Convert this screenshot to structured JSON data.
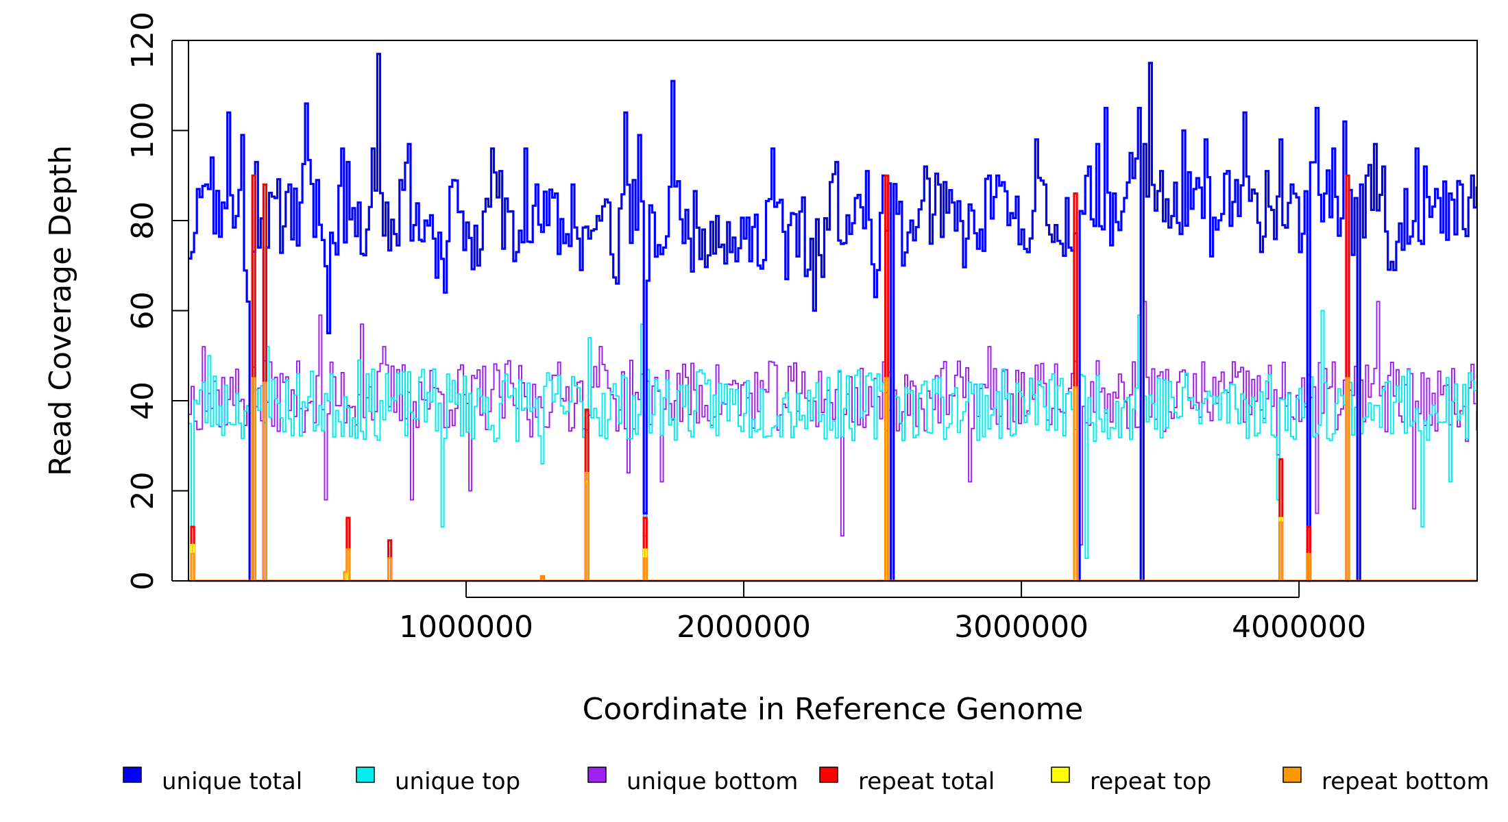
{
  "chart_data": {
    "type": "line",
    "title": "",
    "xlabel": "Coordinate in Reference Genome",
    "ylabel": "Read Coverage Depth",
    "xlim": [
      1,
      4641652
    ],
    "ylim": [
      0,
      120
    ],
    "x_ticks": [
      1000000,
      2000000,
      3000000,
      4000000
    ],
    "x_tick_labels": [
      "1000000",
      "2000000",
      "3000000",
      "4000000"
    ],
    "y_ticks": [
      0,
      20,
      40,
      60,
      80,
      100,
      120
    ],
    "y_tick_labels": [
      "0",
      "20",
      "40",
      "60",
      "80",
      "100",
      "120"
    ],
    "grid": false,
    "legend_position": "bottom",
    "bin_width": 10000,
    "series": [
      {
        "name": "unique total",
        "color": "#0000ff",
        "key_points": [
          [
            10000,
            73
          ],
          [
            30000,
            87
          ],
          [
            60000,
            88
          ],
          [
            80000,
            94
          ],
          [
            120000,
            84
          ],
          [
            140000,
            104
          ],
          [
            170000,
            81
          ],
          [
            190000,
            99
          ],
          [
            210000,
            62
          ],
          [
            240000,
            93
          ],
          [
            280000,
            74
          ],
          [
            310000,
            85
          ],
          [
            360000,
            88
          ],
          [
            400000,
            84
          ],
          [
            420000,
            106
          ],
          [
            460000,
            89
          ],
          [
            500000,
            55
          ],
          [
            520000,
            75
          ],
          [
            550000,
            96
          ],
          [
            570000,
            93
          ],
          [
            610000,
            84
          ],
          [
            640000,
            78
          ],
          [
            660000,
            96
          ],
          [
            680000,
            117
          ],
          [
            710000,
            84
          ],
          [
            740000,
            77
          ],
          [
            760000,
            89
          ],
          [
            790000,
            97
          ],
          [
            810000,
            79
          ],
          [
            850000,
            80
          ],
          [
            880000,
            76
          ],
          [
            920000,
            64
          ],
          [
            950000,
            89
          ],
          [
            980000,
            82
          ],
          [
            1040000,
            70
          ],
          [
            1060000,
            82
          ],
          [
            1090000,
            96
          ],
          [
            1120000,
            91
          ],
          [
            1150000,
            82
          ],
          [
            1180000,
            73
          ],
          [
            1210000,
            96
          ],
          [
            1250000,
            88
          ],
          [
            1290000,
            79
          ],
          [
            1320000,
            86
          ],
          [
            1350000,
            75
          ],
          [
            1380000,
            88
          ],
          [
            1410000,
            69
          ],
          [
            1440000,
            76
          ],
          [
            1480000,
            80
          ],
          [
            1510000,
            84
          ],
          [
            1540000,
            66
          ],
          [
            1570000,
            104
          ],
          [
            1600000,
            89
          ],
          [
            1620000,
            99
          ],
          [
            1640000,
            63
          ],
          [
            1680000,
            72
          ],
          [
            1710000,
            74
          ],
          [
            1740000,
            111
          ],
          [
            1780000,
            75
          ],
          [
            1800000,
            76
          ],
          [
            1850000,
            78
          ],
          [
            1900000,
            81
          ],
          [
            1950000,
            73
          ],
          [
            2000000,
            76
          ],
          [
            2050000,
            70
          ],
          [
            2100000,
            96
          ],
          [
            2150000,
            67
          ],
          [
            2200000,
            82
          ],
          [
            2250000,
            60
          ],
          [
            2300000,
            78
          ],
          [
            2330000,
            93
          ],
          [
            2360000,
            75
          ],
          [
            2400000,
            85
          ],
          [
            2440000,
            91
          ],
          [
            2470000,
            63
          ],
          [
            2500000,
            90
          ],
          [
            2530000,
            92
          ],
          [
            2570000,
            70
          ],
          [
            2600000,
            80
          ],
          [
            2650000,
            92
          ],
          [
            2700000,
            88
          ],
          [
            2750000,
            84
          ],
          [
            2800000,
            76
          ],
          [
            2850000,
            78
          ],
          [
            2880000,
            90
          ],
          [
            2910000,
            90
          ],
          [
            2950000,
            79
          ],
          [
            3000000,
            78
          ],
          [
            3050000,
            98
          ],
          [
            3080000,
            88
          ],
          [
            3120000,
            79
          ],
          [
            3160000,
            85
          ],
          [
            3200000,
            60
          ],
          [
            3240000,
            92
          ],
          [
            3270000,
            97
          ],
          [
            3300000,
            105
          ],
          [
            3330000,
            86
          ],
          [
            3360000,
            82
          ],
          [
            3390000,
            95
          ],
          [
            3420000,
            105
          ],
          [
            3440000,
            97
          ],
          [
            3460000,
            115
          ],
          [
            3500000,
            91
          ],
          [
            3540000,
            81
          ],
          [
            3580000,
            100
          ],
          [
            3620000,
            87
          ],
          [
            3660000,
            98
          ],
          [
            3700000,
            78
          ],
          [
            3740000,
            91
          ],
          [
            3770000,
            89
          ],
          [
            3800000,
            104
          ],
          [
            3840000,
            86
          ],
          [
            3880000,
            91
          ],
          [
            3930000,
            98
          ],
          [
            3970000,
            88
          ],
          [
            4000000,
            73
          ],
          [
            4030000,
            89
          ],
          [
            4060000,
            105
          ],
          [
            4090000,
            86
          ],
          [
            4120000,
            96
          ],
          [
            4160000,
            102
          ],
          [
            4200000,
            85
          ],
          [
            4240000,
            90
          ],
          [
            4270000,
            97
          ],
          [
            4300000,
            92
          ],
          [
            4340000,
            69
          ],
          [
            4380000,
            87
          ],
          [
            4420000,
            96
          ],
          [
            4450000,
            92
          ],
          [
            4500000,
            85
          ],
          [
            4540000,
            86
          ],
          [
            4580000,
            88
          ],
          [
            4620000,
            90
          ]
        ],
        "dips": [
          [
            220000,
            0
          ],
          [
            270000,
            0
          ],
          [
            1640000,
            15
          ],
          [
            2530000,
            0
          ],
          [
            3200000,
            0
          ],
          [
            3430000,
            0
          ],
          [
            4030000,
            0
          ],
          [
            4170000,
            0
          ],
          [
            4210000,
            0
          ]
        ]
      },
      {
        "name": "unique top",
        "color": "#00eeee",
        "baseline": 39,
        "key_points": [
          [
            10000,
            12
          ],
          [
            70000,
            50
          ],
          [
            280000,
            52
          ],
          [
            610000,
            49
          ],
          [
            710000,
            46
          ],
          [
            880000,
            47
          ],
          [
            910000,
            12
          ],
          [
            1100000,
            31
          ],
          [
            1270000,
            26
          ],
          [
            1440000,
            54
          ],
          [
            1630000,
            57
          ],
          [
            2530000,
            4
          ],
          [
            3230000,
            5
          ],
          [
            3420000,
            59
          ],
          [
            3920000,
            18
          ],
          [
            4080000,
            60
          ],
          [
            4440000,
            12
          ],
          [
            4540000,
            22
          ]
        ],
        "dips": [
          [
            220000,
            0
          ],
          [
            1640000,
            10
          ],
          [
            2530000,
            0
          ],
          [
            3200000,
            0
          ],
          [
            3430000,
            0
          ],
          [
            4170000,
            0
          ],
          [
            4210000,
            0
          ]
        ]
      },
      {
        "name": "unique bottom",
        "color": "#a020f0",
        "baseline": 41,
        "key_points": [
          [
            50000,
            52
          ],
          [
            470000,
            59
          ],
          [
            490000,
            18
          ],
          [
            620000,
            57
          ],
          [
            700000,
            52
          ],
          [
            800000,
            18
          ],
          [
            1010000,
            20
          ],
          [
            1230000,
            32
          ],
          [
            1480000,
            52
          ],
          [
            1580000,
            24
          ],
          [
            1700000,
            22
          ],
          [
            2350000,
            10
          ],
          [
            2810000,
            22
          ],
          [
            2880000,
            52
          ],
          [
            3210000,
            8
          ],
          [
            3440000,
            62
          ],
          [
            3920000,
            28
          ],
          [
            4060000,
            15
          ],
          [
            4170000,
            48
          ],
          [
            4280000,
            62
          ],
          [
            4410000,
            16
          ],
          [
            4600000,
            31
          ]
        ],
        "dips": [
          [
            220000,
            0
          ],
          [
            1640000,
            5
          ],
          [
            2530000,
            0
          ],
          [
            3200000,
            0
          ],
          [
            3430000,
            0
          ],
          [
            4030000,
            0
          ],
          [
            4170000,
            0
          ],
          [
            4210000,
            0
          ]
        ]
      },
      {
        "name": "repeat total",
        "color": "#ff0000",
        "baseline": 0,
        "spikes": [
          [
            10000,
            12
          ],
          [
            230000,
            90
          ],
          [
            270000,
            88
          ],
          [
            570000,
            14
          ],
          [
            720000,
            9
          ],
          [
            1270000,
            1
          ],
          [
            1430000,
            38
          ],
          [
            1640000,
            14
          ],
          [
            2510000,
            90
          ],
          [
            3190000,
            86
          ],
          [
            3930000,
            27
          ],
          [
            4030000,
            12
          ],
          [
            4170000,
            90
          ]
        ]
      },
      {
        "name": "repeat top",
        "color": "#ffff00",
        "baseline": 0,
        "spikes": [
          [
            10000,
            8
          ],
          [
            230000,
            45
          ],
          [
            270000,
            44
          ],
          [
            570000,
            7
          ],
          [
            720000,
            5
          ],
          [
            1430000,
            22
          ],
          [
            1640000,
            7
          ],
          [
            2510000,
            45
          ],
          [
            3190000,
            43
          ],
          [
            3930000,
            14
          ],
          [
            4030000,
            6
          ],
          [
            4170000,
            45
          ]
        ]
      },
      {
        "name": "repeat bottom",
        "color": "#ff9900",
        "baseline": 0,
        "spikes": [
          [
            10000,
            6
          ],
          [
            230000,
            45
          ],
          [
            270000,
            44
          ],
          [
            560000,
            2
          ],
          [
            570000,
            7
          ],
          [
            720000,
            5
          ],
          [
            1270000,
            1
          ],
          [
            1430000,
            24
          ],
          [
            1640000,
            5
          ],
          [
            2510000,
            45
          ],
          [
            3190000,
            43
          ],
          [
            3930000,
            13
          ],
          [
            4030000,
            6
          ],
          [
            4170000,
            45
          ]
        ]
      }
    ]
  }
}
